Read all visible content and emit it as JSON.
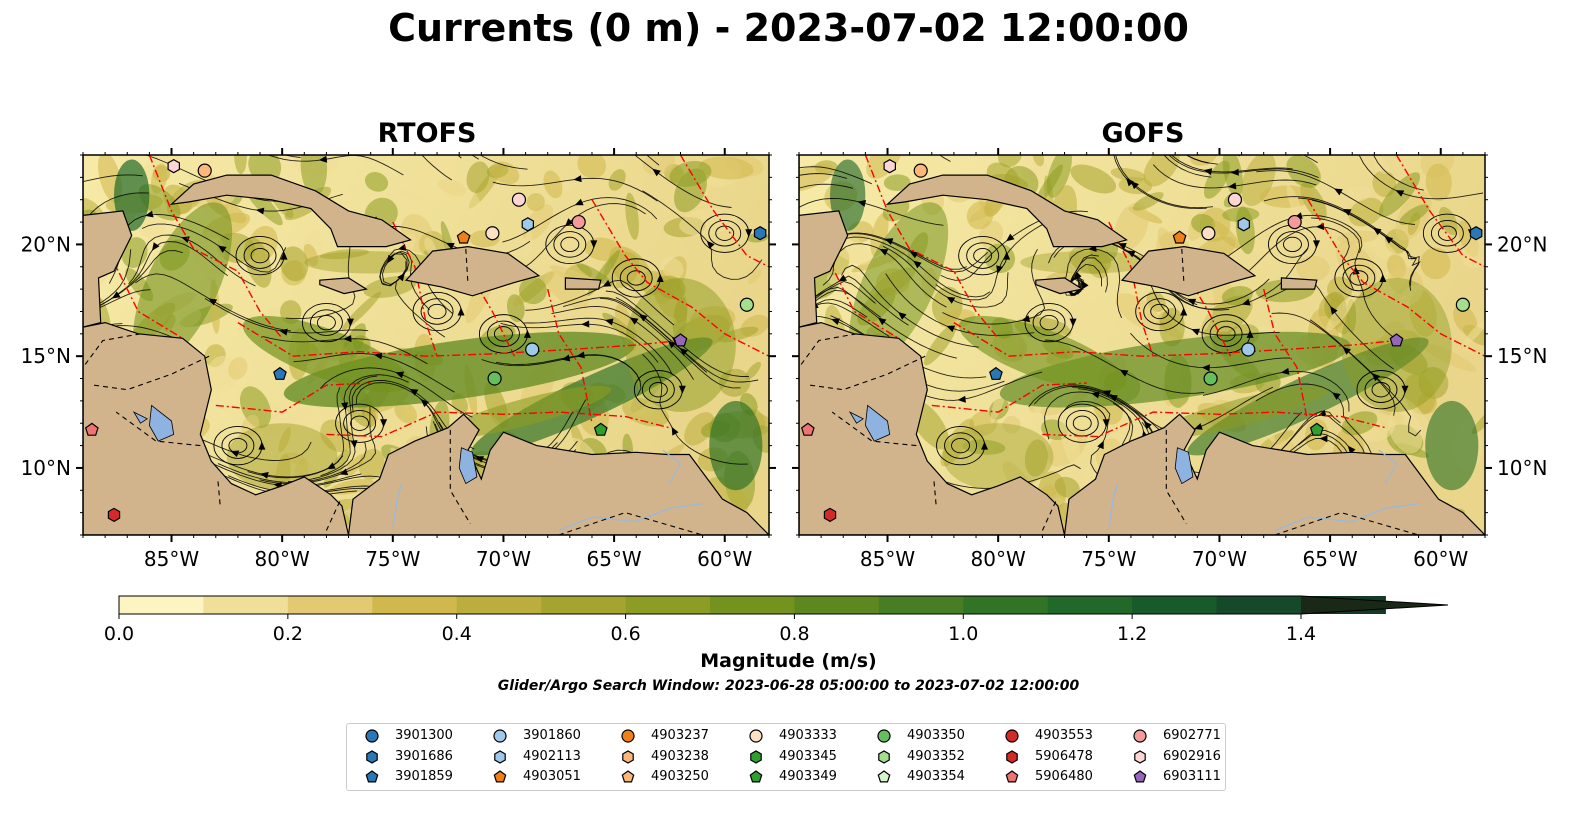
{
  "title": "Currents (0 m) - 2023-07-02 12:00:00",
  "panels": [
    {
      "title": "RTOFS"
    },
    {
      "title": "GOFS"
    }
  ],
  "map": {
    "lon_range": [
      -89,
      -58
    ],
    "lat_range": [
      7,
      24
    ],
    "x_ticks": [
      "85°W",
      "80°W",
      "75°W",
      "70°W",
      "65°W",
      "60°W"
    ],
    "y_ticks": [
      "20°N",
      "15°N",
      "10°N"
    ],
    "colors": {
      "land": "#d2b48c",
      "lake": "#8fb3e0",
      "ocean_low": "#fdf5c4",
      "ocean_mid": "#9bb03a",
      "ocean_high": "#1e6e2e",
      "boundary": "#ff0000",
      "streamline": "#000000"
    }
  },
  "colorbar": {
    "title": "Magnitude (m/s)",
    "min": 0.0,
    "max": 1.5,
    "step": 0.1,
    "extend": "max",
    "tick_labels": [
      "0.0",
      "0.2",
      "0.4",
      "0.6",
      "0.8",
      "1.0",
      "1.2",
      "1.4"
    ],
    "colors": [
      "#fdf5c1",
      "#f0df98",
      "#e2ca72",
      "#d0b84d",
      "#bcae3c",
      "#a5a42e",
      "#8d9c22",
      "#74931e",
      "#5d881f",
      "#477e23",
      "#327426",
      "#216929",
      "#175b2b",
      "#15492a",
      "#163827",
      "#1a2817"
    ]
  },
  "subtitle": "Glider/Argo Search Window: 2023-06-28 05:00:00 to 2023-07-02 12:00:00",
  "legend": [
    {
      "id": "3901300",
      "color": "#2878b8",
      "shape": "circle"
    },
    {
      "id": "3901686",
      "color": "#2878b8",
      "shape": "hexagon"
    },
    {
      "id": "3901859",
      "color": "#2878b8",
      "shape": "pentagon"
    },
    {
      "id": "3901860",
      "color": "#9ec9ea",
      "shape": "circle"
    },
    {
      "id": "4902113",
      "color": "#9ec9ea",
      "shape": "hexagon"
    },
    {
      "id": "4903051",
      "color": "#f07f18",
      "shape": "pentagon"
    },
    {
      "id": "4903237",
      "color": "#f07f18",
      "shape": "circle"
    },
    {
      "id": "4903238",
      "color": "#fdb77a",
      "shape": "hexagon"
    },
    {
      "id": "4903250",
      "color": "#fdb77a",
      "shape": "pentagon"
    },
    {
      "id": "4903333",
      "color": "#fbe0c6",
      "shape": "circle"
    },
    {
      "id": "4903345",
      "color": "#2ea02e",
      "shape": "hexagon"
    },
    {
      "id": "4903349",
      "color": "#2ea02e",
      "shape": "pentagon"
    },
    {
      "id": "4903350",
      "color": "#66bf5f",
      "shape": "circle"
    },
    {
      "id": "4903352",
      "color": "#a3df8c",
      "shape": "hexagon"
    },
    {
      "id": "4903354",
      "color": "#d6f5cc",
      "shape": "pentagon"
    },
    {
      "id": "4903553",
      "color": "#d42a27",
      "shape": "circle"
    },
    {
      "id": "5906478",
      "color": "#d42a27",
      "shape": "hexagon"
    },
    {
      "id": "5906480",
      "color": "#f07373",
      "shape": "pentagon"
    },
    {
      "id": "6902771",
      "color": "#f59a9a",
      "shape": "circle"
    },
    {
      "id": "6902916",
      "color": "#fcd5d5",
      "shape": "hexagon"
    },
    {
      "id": "6903111",
      "color": "#9467bd",
      "shape": "pentagon"
    }
  ],
  "floats": [
    {
      "lon": -84.9,
      "lat": 23.5,
      "color": "#fcd5d5",
      "shape": "hexagon"
    },
    {
      "lon": -83.5,
      "lat": 23.3,
      "color": "#fdb77a",
      "shape": "circle"
    },
    {
      "lon": -80.1,
      "lat": 14.2,
      "color": "#2878b8",
      "shape": "pentagon"
    },
    {
      "lon": -71.8,
      "lat": 20.3,
      "color": "#f07f18",
      "shape": "pentagon"
    },
    {
      "lon": -70.5,
      "lat": 20.5,
      "color": "#fbe0c6",
      "shape": "circle"
    },
    {
      "lon": -69.3,
      "lat": 22.0,
      "color": "#fcd5d5",
      "shape": "circle"
    },
    {
      "lon": -68.9,
      "lat": 20.9,
      "color": "#9ec9ea",
      "shape": "hexagon"
    },
    {
      "lon": -66.6,
      "lat": 21.0,
      "color": "#f59a9a",
      "shape": "circle"
    },
    {
      "lon": -68.7,
      "lat": 15.3,
      "color": "#9ec9ea",
      "shape": "circle"
    },
    {
      "lon": -70.4,
      "lat": 14.0,
      "color": "#66bf5f",
      "shape": "circle"
    },
    {
      "lon": -65.6,
      "lat": 11.7,
      "color": "#2ea02e",
      "shape": "pentagon"
    },
    {
      "lon": -62.0,
      "lat": 15.7,
      "color": "#9467bd",
      "shape": "pentagon"
    },
    {
      "lon": -59.0,
      "lat": 17.3,
      "color": "#a3df8c",
      "shape": "circle"
    },
    {
      "lon": -58.4,
      "lat": 20.5,
      "color": "#2878b8",
      "shape": "hexagon"
    },
    {
      "lon": -88.6,
      "lat": 11.7,
      "color": "#f07373",
      "shape": "pentagon"
    },
    {
      "lon": -87.6,
      "lat": 7.9,
      "color": "#d42a27",
      "shape": "hexagon"
    }
  ]
}
